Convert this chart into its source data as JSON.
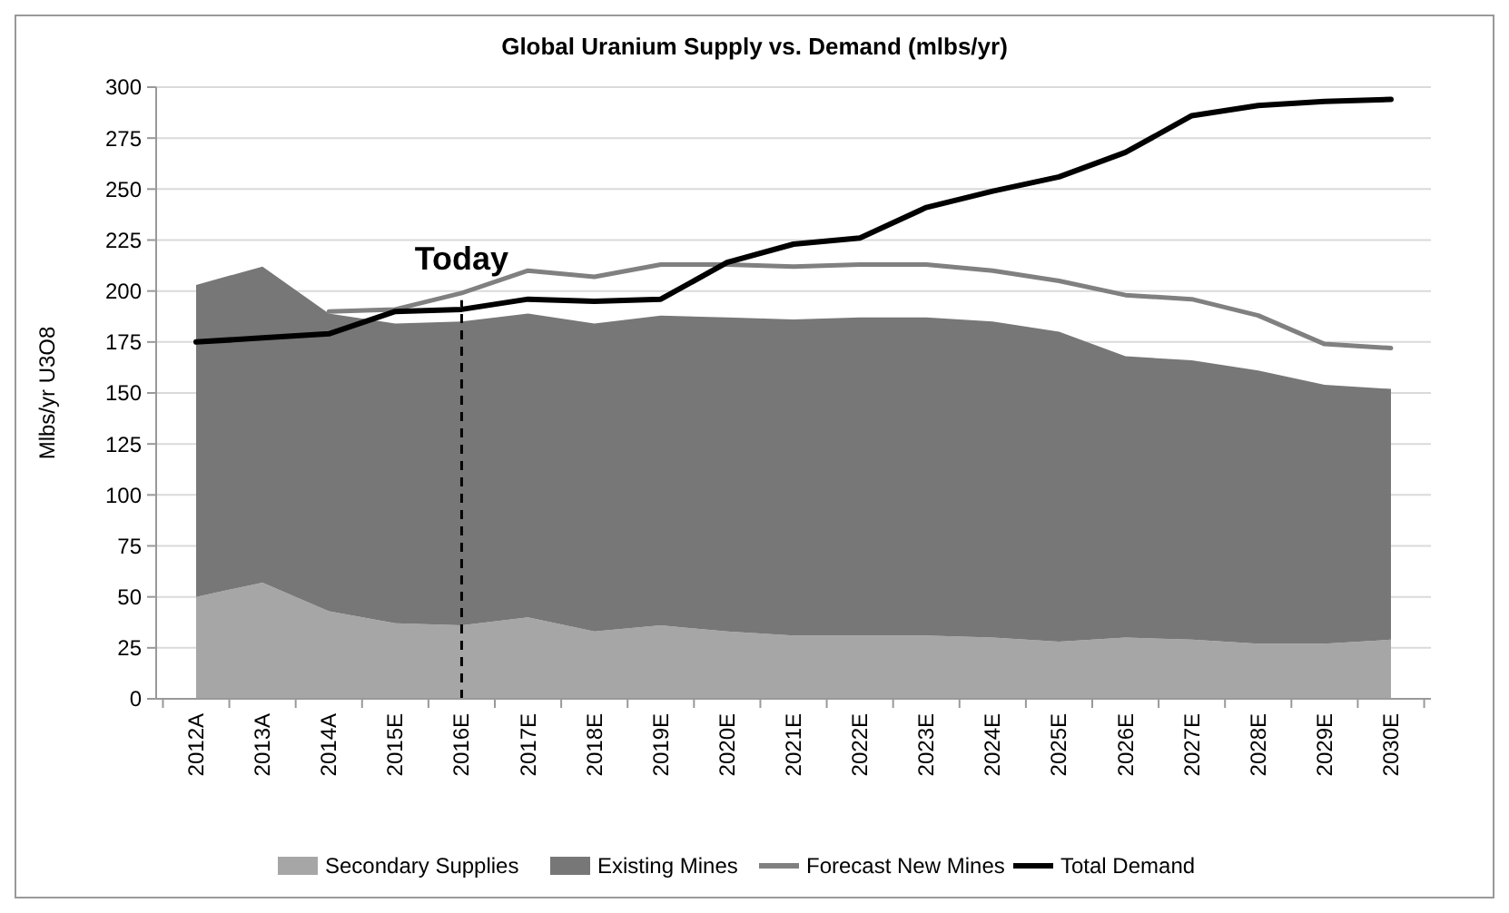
{
  "chart_data": {
    "type": "area",
    "title": "Global Uranium Supply vs. Demand (mlbs/yr)",
    "ylabel": "Mlbs/yr U3O8",
    "categories": [
      "2012A",
      "2013A",
      "2014A",
      "2015E",
      "2016E",
      "2017E",
      "2018E",
      "2019E",
      "2020E",
      "2021E",
      "2022E",
      "2023E",
      "2024E",
      "2025E",
      "2026E",
      "2027E",
      "2028E",
      "2029E",
      "2030E"
    ],
    "stacked": true,
    "series": [
      {
        "name": "Secondary Supplies",
        "color": "#a6a6a6",
        "values": [
          50,
          57,
          43,
          37,
          36,
          40,
          33,
          36,
          33,
          31,
          31,
          31,
          30,
          28,
          30,
          29,
          27,
          27,
          29
        ]
      },
      {
        "name": "Existing Mines",
        "color": "#777777",
        "values": [
          153,
          155,
          146,
          147,
          149,
          149,
          151,
          152,
          154,
          155,
          156,
          156,
          155,
          152,
          138,
          137,
          134,
          127,
          123
        ]
      },
      {
        "name": "Forecast New Mines",
        "type": "line",
        "color": "#808080",
        "values": [
          null,
          null,
          190,
          191,
          199,
          210,
          207,
          213,
          213,
          212,
          213,
          213,
          210,
          205,
          198,
          196,
          188,
          174,
          172
        ]
      },
      {
        "name": "Total Demand",
        "type": "line",
        "color": "#000000",
        "values": [
          175,
          177,
          179,
          190,
          191,
          196,
          195,
          196,
          214,
          223,
          226,
          241,
          249,
          256,
          268,
          286,
          291,
          293,
          294
        ]
      }
    ],
    "ylim": [
      0,
      300
    ],
    "yticks": [
      0,
      25,
      50,
      75,
      100,
      125,
      150,
      175,
      200,
      225,
      250,
      275,
      300
    ],
    "ref_lines": [
      {
        "axis": "x",
        "value": "2016E",
        "label": "Today",
        "line_style": "dashed",
        "color": "#000000"
      }
    ],
    "grid": "y",
    "legend": "bottom"
  }
}
